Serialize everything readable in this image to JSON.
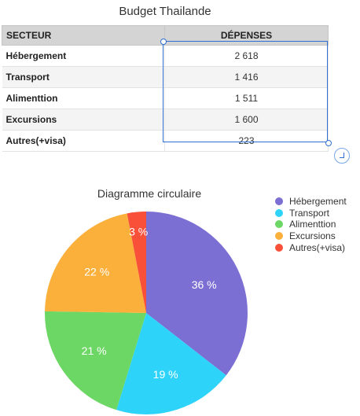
{
  "table": {
    "title": "Budget Thailande",
    "headers": [
      "SECTEUR",
      "DÉPENSES"
    ],
    "rows": [
      {
        "secteur": "Hébergement",
        "depenses": "2 618"
      },
      {
        "secteur": "Transport",
        "depenses": "1 416"
      },
      {
        "secteur": "Alimenttion",
        "depenses": "1 511"
      },
      {
        "secteur": "Excursions",
        "depenses": "1 600"
      },
      {
        "secteur": "Autres(+visa)",
        "depenses": "223"
      }
    ]
  },
  "chart_data": {
    "type": "pie",
    "title": "Diagramme circulaire",
    "categories": [
      "Hébergement",
      "Transport",
      "Alimenttion",
      "Excursions",
      "Autres(+visa)"
    ],
    "values": [
      2618,
      1416,
      1511,
      1600,
      223
    ],
    "percent_labels": [
      "36 %",
      "19 %",
      "21 %",
      "22 %",
      "3 %"
    ],
    "colors": [
      "#7b6fd3",
      "#2ed3fa",
      "#6cd764",
      "#fbb03b",
      "#f9503a"
    ],
    "legend_position": "right"
  }
}
